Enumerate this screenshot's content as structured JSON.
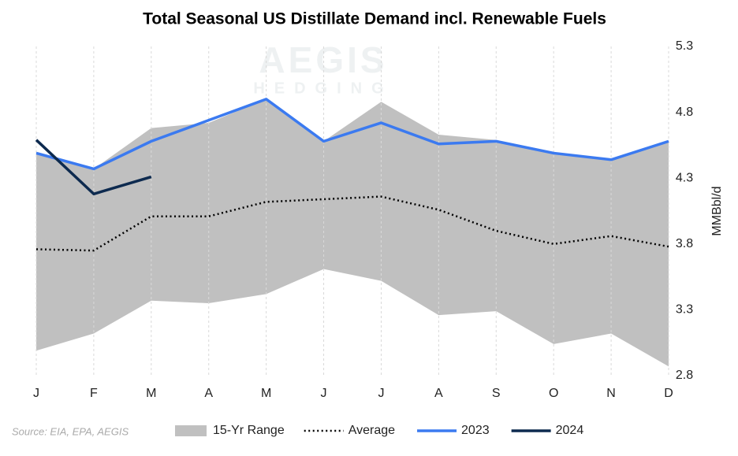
{
  "chart_data": {
    "type": "line",
    "title": "Total Seasonal US Distillate Demand incl. Renewable Fuels",
    "y_label": "MMBbl/d",
    "source": "Source: EIA, EPA, AEGIS",
    "watermark": [
      "AEGIS",
      "HEDGING"
    ],
    "categories": [
      "J",
      "F",
      "M",
      "A",
      "M",
      "J",
      "J",
      "A",
      "S",
      "O",
      "N",
      "D"
    ],
    "ylim": [
      2.8,
      5.3
    ],
    "yticks": [
      2.8,
      3.3,
      3.8,
      4.3,
      4.8,
      5.3
    ],
    "grid": true,
    "legend": "bottom",
    "range": {
      "name": "15-Yr Range",
      "color": "#c0c0c0",
      "lower": [
        2.99,
        3.12,
        3.37,
        3.35,
        3.42,
        3.61,
        3.52,
        3.26,
        3.29,
        3.04,
        3.12,
        2.87
      ],
      "upper": [
        4.49,
        4.37,
        4.68,
        4.72,
        4.9,
        4.58,
        4.88,
        4.63,
        4.59,
        4.49,
        4.44,
        4.58
      ]
    },
    "series": [
      {
        "name": "Average",
        "color": "#000000",
        "dash": "dotted",
        "values": [
          3.76,
          3.75,
          4.01,
          4.01,
          4.12,
          4.14,
          4.16,
          4.06,
          3.9,
          3.8,
          3.86,
          3.78
        ]
      },
      {
        "name": "2023",
        "color": "#3b7af0",
        "values": [
          4.49,
          4.37,
          4.58,
          4.74,
          4.9,
          4.58,
          4.72,
          4.56,
          4.58,
          4.49,
          4.44,
          4.58
        ]
      },
      {
        "name": "2024",
        "color": "#0d2a4f",
        "values": [
          4.59,
          4.18,
          4.31,
          null,
          null,
          null,
          null,
          null,
          null,
          null,
          null,
          null
        ]
      }
    ]
  }
}
